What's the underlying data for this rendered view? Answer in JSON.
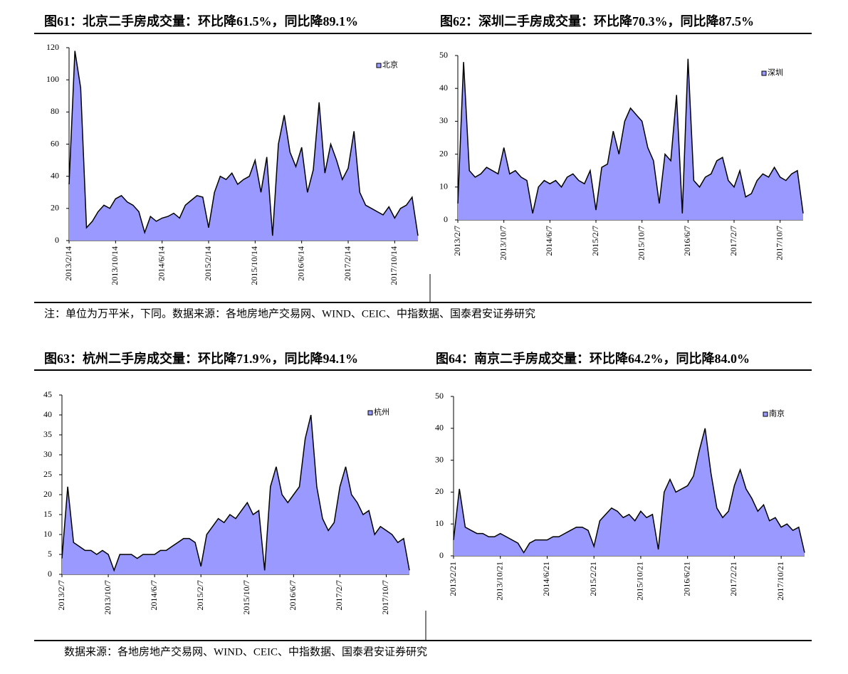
{
  "chart_data": [
    {
      "type": "area",
      "title": "图61：北京二手房成交量：环比降61.5%，同比降89.1%",
      "categories": [
        "2013/2/14",
        null,
        null,
        null,
        null,
        null,
        null,
        null,
        "2013/10/14",
        null,
        null,
        null,
        null,
        null,
        null,
        null,
        "2014/6/14",
        null,
        null,
        null,
        null,
        null,
        null,
        null,
        "2015/2/14",
        null,
        null,
        null,
        null,
        null,
        null,
        null,
        "2015/10/14",
        null,
        null,
        null,
        null,
        null,
        null,
        null,
        "2016/6/14",
        null,
        null,
        null,
        null,
        null,
        null,
        null,
        "2017/2/14",
        null,
        null,
        null,
        null,
        null,
        null,
        null,
        "2017/10/14",
        null,
        null,
        null,
        null
      ],
      "series": [
        {
          "name": "北京",
          "color": "#9999ff",
          "values": [
            35,
            118,
            95,
            8,
            12,
            18,
            22,
            20,
            26,
            28,
            24,
            22,
            18,
            5,
            15,
            12,
            14,
            15,
            17,
            14,
            22,
            25,
            28,
            27,
            8,
            30,
            40,
            38,
            42,
            35,
            38,
            40,
            50,
            30,
            52,
            3,
            60,
            78,
            55,
            46,
            58,
            30,
            44,
            86,
            42,
            60,
            50,
            38,
            45,
            68,
            30,
            22,
            20,
            18,
            16,
            21,
            14,
            20,
            22,
            27,
            3
          ]
        }
      ],
      "ylim": [
        0,
        120
      ],
      "yticks": [
        0,
        20,
        40,
        60,
        80,
        100,
        120
      ],
      "legend": "upper right"
    },
    {
      "type": "area",
      "title": "图62：深圳二手房成交量：环比降70.3%，同比降87.5%",
      "categories": [
        "2013/2/7",
        null,
        null,
        null,
        null,
        null,
        null,
        null,
        "2013/10/7",
        null,
        null,
        null,
        null,
        null,
        null,
        null,
        "2014/6/7",
        null,
        null,
        null,
        null,
        null,
        null,
        null,
        "2015/2/7",
        null,
        null,
        null,
        null,
        null,
        null,
        null,
        "2015/10/7",
        null,
        null,
        null,
        null,
        null,
        null,
        null,
        "2016/6/7",
        null,
        null,
        null,
        null,
        null,
        null,
        null,
        "2017/2/7",
        null,
        null,
        null,
        null,
        null,
        null,
        null,
        "2017/10/7",
        null,
        null,
        null,
        null
      ],
      "series": [
        {
          "name": "深圳",
          "color": "#9999ff",
          "values": [
            5,
            48,
            15,
            13,
            14,
            16,
            15,
            14,
            22,
            14,
            15,
            13,
            12,
            2,
            10,
            12,
            11,
            12,
            10,
            13,
            14,
            12,
            11,
            15,
            3,
            16,
            17,
            27,
            20,
            30,
            34,
            32,
            30,
            22,
            18,
            5,
            20,
            18,
            38,
            2,
            49,
            12,
            10,
            13,
            14,
            18,
            19,
            12,
            10,
            15,
            7,
            8,
            12,
            14,
            13,
            16,
            13,
            12,
            14,
            15,
            2
          ]
        }
      ],
      "ylim": [
        0,
        50
      ],
      "yticks": [
        0,
        10,
        20,
        30,
        40,
        50
      ],
      "legend": "upper right"
    },
    {
      "type": "area",
      "title": "图63：杭州二手房成交量：环比降71.9%，同比降94.1%",
      "categories": [
        "2013/2/7",
        null,
        null,
        null,
        null,
        null,
        null,
        null,
        "2013/10/7",
        null,
        null,
        null,
        null,
        null,
        null,
        null,
        "2014/6/7",
        null,
        null,
        null,
        null,
        null,
        null,
        null,
        "2015/2/7",
        null,
        null,
        null,
        null,
        null,
        null,
        null,
        "2015/10/7",
        null,
        null,
        null,
        null,
        null,
        null,
        null,
        "2016/6/7",
        null,
        null,
        null,
        null,
        null,
        null,
        null,
        "2017/2/7",
        null,
        null,
        null,
        null,
        null,
        null,
        null,
        "2017/10/7",
        null,
        null,
        null,
        null
      ],
      "series": [
        {
          "name": "杭州",
          "color": "#9999ff",
          "values": [
            4,
            22,
            8,
            7,
            6,
            6,
            5,
            6,
            5,
            1,
            5,
            5,
            5,
            4,
            5,
            5,
            5,
            6,
            6,
            7,
            8,
            9,
            9,
            8,
            2,
            10,
            12,
            14,
            13,
            15,
            14,
            16,
            18,
            15,
            16,
            1,
            22,
            27,
            20,
            18,
            20,
            22,
            34,
            40,
            22,
            14,
            11,
            13,
            22,
            27,
            20,
            18,
            15,
            16,
            10,
            12,
            11,
            10,
            8,
            9,
            1
          ]
        }
      ],
      "ylim": [
        0,
        45
      ],
      "yticks": [
        0,
        5,
        10,
        15,
        20,
        25,
        30,
        35,
        40,
        45
      ],
      "legend": "upper right"
    },
    {
      "type": "area",
      "title": "图64：南京二手房成交量：环比降64.2%，同比降84.0%",
      "categories": [
        "2013/2/21",
        null,
        null,
        null,
        null,
        null,
        null,
        null,
        "2013/10/21",
        null,
        null,
        null,
        null,
        null,
        null,
        null,
        "2014/6/21",
        null,
        null,
        null,
        null,
        null,
        null,
        null,
        "2015/2/21",
        null,
        null,
        null,
        null,
        null,
        null,
        null,
        "2015/10/21",
        null,
        null,
        null,
        null,
        null,
        null,
        null,
        "2016/6/21",
        null,
        null,
        null,
        null,
        null,
        null,
        null,
        "2017/2/21",
        null,
        null,
        null,
        null,
        null,
        null,
        null,
        "2017/10/21",
        null,
        null,
        null,
        null
      ],
      "series": [
        {
          "name": "南京",
          "color": "#9999ff",
          "values": [
            5,
            21,
            9,
            8,
            7,
            7,
            6,
            6,
            7,
            6,
            5,
            4,
            1,
            4,
            5,
            5,
            5,
            6,
            6,
            7,
            8,
            9,
            9,
            8,
            3,
            11,
            13,
            15,
            14,
            12,
            13,
            11,
            14,
            12,
            13,
            2,
            20,
            24,
            20,
            21,
            22,
            25,
            33,
            40,
            26,
            15,
            12,
            14,
            22,
            27,
            21,
            18,
            14,
            16,
            11,
            12,
            9,
            10,
            8,
            9,
            1
          ]
        }
      ],
      "ylim": [
        0,
        50
      ],
      "yticks": [
        0,
        10,
        20,
        30,
        40,
        50
      ],
      "legend": "upper right"
    }
  ],
  "notes": [
    "注：单位为万平米，下同。数据来源：各地房地产交易网、WIND、CEIC、中指数据、国泰君安证券研究",
    "数据来源：各地房地产交易网、WIND、CEIC、中指数据、国泰君安证券研究"
  ]
}
